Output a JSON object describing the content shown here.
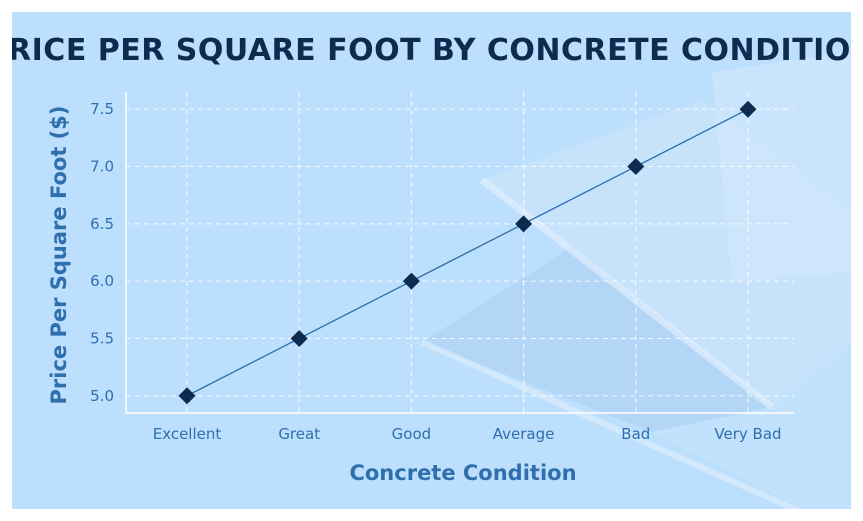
{
  "chart_data": {
    "type": "line",
    "title": "PRICE PER SQUARE FOOT BY CONCRETE CONDITION",
    "xlabel": "Concrete Condition",
    "ylabel": "Price Per Square Foot ($)",
    "categories": [
      "Excellent",
      "Great",
      "Good",
      "Average",
      "Bad",
      "Very Bad"
    ],
    "series": [
      {
        "values": [
          5.0,
          5.5,
          6.0,
          6.5,
          7.0,
          7.5
        ]
      }
    ],
    "ylim": [
      4.85,
      7.65
    ],
    "yticks": [
      "5.0",
      "5.5",
      "6.0",
      "6.5",
      "7.0",
      "7.5"
    ],
    "grid": true,
    "legend": "none",
    "marker": "diamond",
    "colors": {
      "background": "#bcdffd",
      "line": "#2a6aa8",
      "marker": "#0d2a4f",
      "title": "#0d2a4f",
      "labels": "#2f6fae"
    }
  }
}
